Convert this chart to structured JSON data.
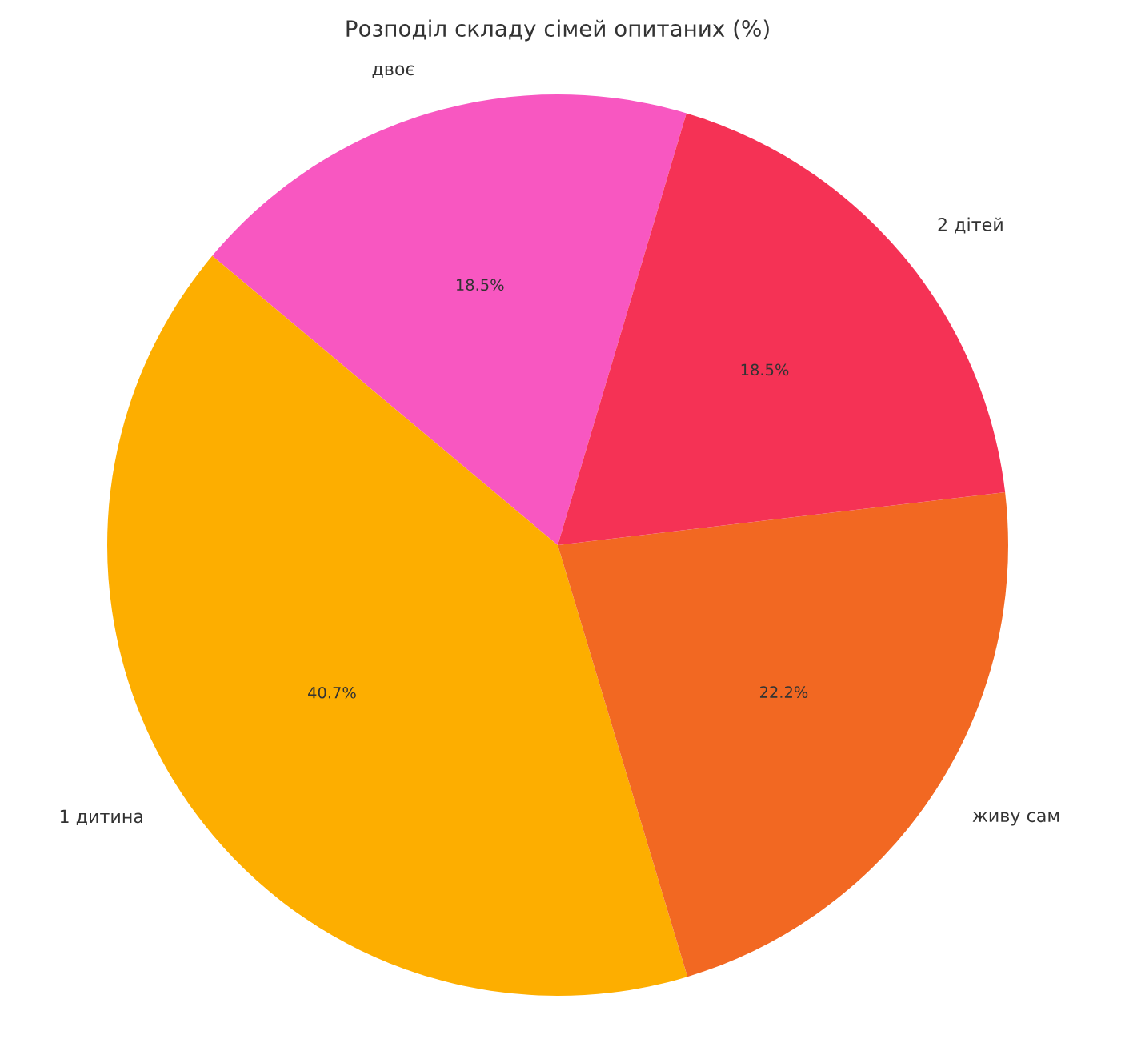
{
  "chart_data": {
    "type": "pie",
    "title": "Розподіл складу сімей опитаних (%)",
    "categories": [
      "двоє",
      "1 дитина",
      "живу сам",
      "2 дітей"
    ],
    "values": [
      18.5,
      40.7,
      22.2,
      18.5
    ],
    "colors": [
      "#f857c1",
      "#fdae00",
      "#f26822",
      "#f53255"
    ],
    "value_labels": [
      "18.5%",
      "40.7%",
      "22.2%",
      "18.5%"
    ]
  }
}
